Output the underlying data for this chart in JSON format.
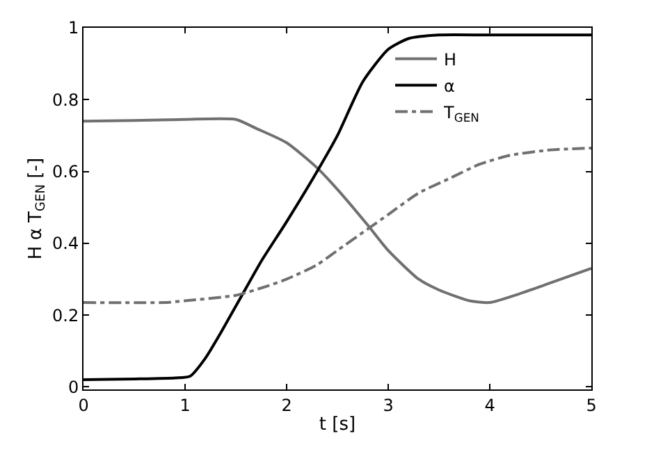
{
  "chart_data": {
    "type": "line",
    "xlabel": "t [s]",
    "ylabel": "H α T$_{GEN}$ [-]",
    "xlim": [
      0,
      5
    ],
    "ylim": [
      0,
      1
    ],
    "xticks": [
      0,
      1,
      2,
      3,
      4,
      5
    ],
    "yticks": [
      0,
      0.2,
      0.4,
      0.6,
      0.8,
      1
    ],
    "legend": "top right",
    "marker": "none",
    "series": [
      {
        "name": "H",
        "color": "#707070",
        "line_style": "solid",
        "x": [
          0,
          0.5,
          1,
          1.5,
          1.7,
          2,
          2.3,
          2.5,
          2.8,
          3,
          3.3,
          3.5,
          3.8,
          4,
          4.3,
          4.6,
          5
        ],
        "values": [
          0.74,
          0.742,
          0.745,
          0.745,
          0.72,
          0.68,
          0.61,
          0.55,
          0.45,
          0.38,
          0.3,
          0.27,
          0.24,
          0.235,
          0.26,
          0.29,
          0.33
        ]
      },
      {
        "name": "α",
        "color": "#000000",
        "line_style": "solid",
        "x": [
          0,
          0.5,
          0.9,
          1.05,
          1.2,
          1.35,
          1.55,
          1.75,
          2,
          2.3,
          2.5,
          2.75,
          3,
          3.2,
          3.5,
          4,
          5
        ],
        "values": [
          0.02,
          0.022,
          0.025,
          0.03,
          0.08,
          0.15,
          0.25,
          0.35,
          0.46,
          0.6,
          0.7,
          0.85,
          0.94,
          0.97,
          0.98,
          0.98,
          0.98
        ]
      },
      {
        "name": "T$_{GEN}$",
        "color": "#707070",
        "line_style": "dashdot",
        "x": [
          0,
          0.8,
          1,
          1.5,
          1.8,
          2,
          2.3,
          2.5,
          2.8,
          3,
          3.3,
          3.6,
          3.9,
          4.2,
          4.6,
          5
        ],
        "values": [
          0.235,
          0.235,
          0.24,
          0.255,
          0.28,
          0.3,
          0.34,
          0.38,
          0.44,
          0.48,
          0.54,
          0.58,
          0.62,
          0.645,
          0.66,
          0.665
        ]
      }
    ]
  }
}
